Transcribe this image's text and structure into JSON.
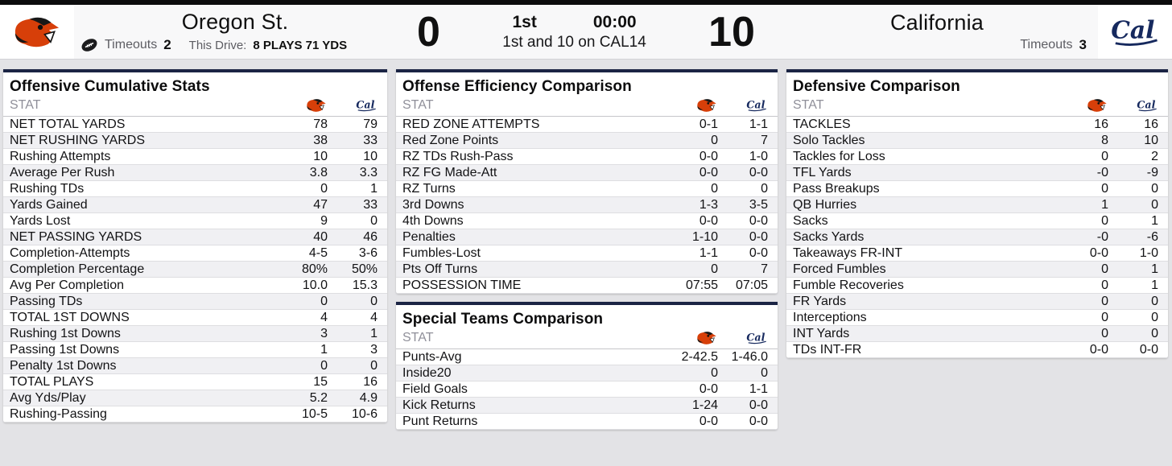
{
  "colors": {
    "panel_accent_navy": "#1b2444",
    "osu_orange": "#D73F09",
    "cal_navy": "#16295e",
    "page_background": "#e3e3e6",
    "row_stripe": "#f0f0f3"
  },
  "icons": {
    "football_icon": "football",
    "home_logo": "oregon-state-beaver-logo",
    "away_logo": "cal-script-logo"
  },
  "scoreboard": {
    "quarter": "1st",
    "clock": "00:00",
    "situation": "1st and 10 on CAL14",
    "home": {
      "name": "Oregon St.",
      "score": "0",
      "timeouts_label": "Timeouts",
      "timeouts": "2",
      "drive_label": "This Drive:",
      "drive_value": "8 PLAYS 71 YDS"
    },
    "away": {
      "name": "California",
      "score": "10",
      "timeouts_label": "Timeouts",
      "timeouts": "3"
    }
  },
  "panels": {
    "offensive_cumulative": {
      "title": "Offensive Cumulative Stats",
      "stat_header": "STAT",
      "rows": [
        {
          "label": "NET TOTAL YARDS",
          "home": "78",
          "away": "79"
        },
        {
          "label": "NET RUSHING YARDS",
          "home": "38",
          "away": "33"
        },
        {
          "label": "Rushing Attempts",
          "home": "10",
          "away": "10"
        },
        {
          "label": "Average Per Rush",
          "home": "3.8",
          "away": "3.3"
        },
        {
          "label": "Rushing TDs",
          "home": "0",
          "away": "1"
        },
        {
          "label": "Yards Gained",
          "home": "47",
          "away": "33"
        },
        {
          "label": "Yards Lost",
          "home": "9",
          "away": "0"
        },
        {
          "label": "NET PASSING YARDS",
          "home": "40",
          "away": "46"
        },
        {
          "label": "Completion-Attempts",
          "home": "4-5",
          "away": "3-6"
        },
        {
          "label": "Completion Percentage",
          "home": "80%",
          "away": "50%"
        },
        {
          "label": "Avg Per Completion",
          "home": "10.0",
          "away": "15.3"
        },
        {
          "label": "Passing TDs",
          "home": "0",
          "away": "0"
        },
        {
          "label": "TOTAL 1ST DOWNS",
          "home": "4",
          "away": "4"
        },
        {
          "label": "Rushing 1st Downs",
          "home": "3",
          "away": "1"
        },
        {
          "label": "Passing 1st Downs",
          "home": "1",
          "away": "3"
        },
        {
          "label": "Penalty 1st Downs",
          "home": "0",
          "away": "0"
        },
        {
          "label": "TOTAL PLAYS",
          "home": "15",
          "away": "16"
        },
        {
          "label": "Avg Yds/Play",
          "home": "5.2",
          "away": "4.9"
        },
        {
          "label": "Rushing-Passing",
          "home": "10-5",
          "away": "10-6"
        }
      ]
    },
    "offense_efficiency": {
      "title": "Offense Efficiency Comparison",
      "stat_header": "STAT",
      "rows": [
        {
          "label": "RED ZONE ATTEMPTS",
          "home": "0-1",
          "away": "1-1"
        },
        {
          "label": "Red Zone Points",
          "home": "0",
          "away": "7"
        },
        {
          "label": "RZ TDs Rush-Pass",
          "home": "0-0",
          "away": "1-0"
        },
        {
          "label": "RZ FG Made-Att",
          "home": "0-0",
          "away": "0-0"
        },
        {
          "label": "RZ Turns",
          "home": "0",
          "away": "0"
        },
        {
          "label": "3rd Downs",
          "home": "1-3",
          "away": "3-5"
        },
        {
          "label": "4th Downs",
          "home": "0-0",
          "away": "0-0"
        },
        {
          "label": "Penalties",
          "home": "1-10",
          "away": "0-0"
        },
        {
          "label": "Fumbles-Lost",
          "home": "1-1",
          "away": "0-0"
        },
        {
          "label": "Pts Off Turns",
          "home": "0",
          "away": "7"
        },
        {
          "label": "POSSESSION TIME",
          "home": "07:55",
          "away": "07:05"
        }
      ]
    },
    "special_teams": {
      "title": "Special Teams Comparison",
      "stat_header": "STAT",
      "rows": [
        {
          "label": "Punts-Avg",
          "home": "2-42.5",
          "away": "1-46.0"
        },
        {
          "label": "Inside20",
          "home": "0",
          "away": "0"
        },
        {
          "label": "Field Goals",
          "home": "0-0",
          "away": "1-1"
        },
        {
          "label": "Kick Returns",
          "home": "1-24",
          "away": "0-0"
        },
        {
          "label": "Punt Returns",
          "home": "0-0",
          "away": "0-0"
        }
      ]
    },
    "defensive": {
      "title": "Defensive Comparison",
      "stat_header": "STAT",
      "rows": [
        {
          "label": "TACKLES",
          "home": "16",
          "away": "16"
        },
        {
          "label": "Solo Tackles",
          "home": "8",
          "away": "10"
        },
        {
          "label": "Tackles for Loss",
          "home": "0",
          "away": "2"
        },
        {
          "label": "TFL Yards",
          "home": "-0",
          "away": "-9"
        },
        {
          "label": "Pass Breakups",
          "home": "0",
          "away": "0"
        },
        {
          "label": "QB Hurries",
          "home": "1",
          "away": "0"
        },
        {
          "label": "Sacks",
          "home": "0",
          "away": "1"
        },
        {
          "label": "Sacks Yards",
          "home": "-0",
          "away": "-6"
        },
        {
          "label": "Takeaways FR-INT",
          "home": "0-0",
          "away": "1-0"
        },
        {
          "label": "Forced Fumbles",
          "home": "0",
          "away": "1"
        },
        {
          "label": "Fumble Recoveries",
          "home": "0",
          "away": "1"
        },
        {
          "label": "FR Yards",
          "home": "0",
          "away": "0"
        },
        {
          "label": "Interceptions",
          "home": "0",
          "away": "0"
        },
        {
          "label": "INT Yards",
          "home": "0",
          "away": "0"
        },
        {
          "label": "TDs INT-FR",
          "home": "0-0",
          "away": "0-0"
        }
      ]
    }
  }
}
